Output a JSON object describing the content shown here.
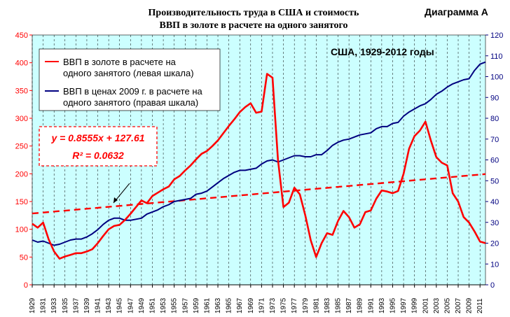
{
  "colors": {
    "plot_bg": "#ccffff",
    "gold_series": "#ff0000",
    "real_series": "#000080",
    "trend": "#ff0000",
    "label_tag": "#0000ff"
  },
  "chart_data": {
    "type": "line",
    "title_line1": "Производительность труда в США и стоимость",
    "title_line2": "ВВП в золоте в расчете на одного занятого",
    "tag": "Диаграмма А",
    "annotation": "США, 1929-2012 годы",
    "left_axis": {
      "min": 0,
      "max": 450,
      "step": 50,
      "ticks": [
        "0",
        "50",
        "100",
        "150",
        "200",
        "250",
        "300",
        "350",
        "400",
        "450"
      ]
    },
    "right_axis": {
      "min": 0,
      "max": 120,
      "step": 10,
      "ticks": [
        "0",
        "10",
        "20",
        "30",
        "40",
        "50",
        "60",
        "70",
        "80",
        "90",
        "100",
        "110",
        "120"
      ]
    },
    "x_range": [
      1929,
      2012
    ],
    "x_ticks": [
      "1929",
      "1931",
      "1933",
      "1935",
      "1937",
      "1939",
      "1941",
      "1943",
      "1945",
      "1947",
      "1949",
      "1951",
      "1953",
      "1955",
      "1957",
      "1959",
      "1961",
      "1963",
      "1965",
      "1967",
      "1969",
      "1971",
      "1973",
      "1975",
      "1977",
      "1979",
      "1981",
      "1983",
      "1985",
      "1987",
      "1989",
      "1991",
      "1993",
      "1995",
      "1997",
      "1999",
      "2001",
      "2003",
      "2005",
      "2007",
      "2009",
      "2011"
    ],
    "grid": "vertical dashed",
    "legend_placement": "top-left",
    "series": [
      {
        "name_line1": "ВВП в золоте в расчете на",
        "name_line2": "одного занятого (левая шкала)",
        "axis": "left",
        "x": [
          1929,
          1930,
          1931,
          1932,
          1933,
          1934,
          1935,
          1936,
          1937,
          1938,
          1939,
          1940,
          1941,
          1942,
          1943,
          1944,
          1945,
          1946,
          1947,
          1948,
          1949,
          1950,
          1951,
          1952,
          1953,
          1954,
          1955,
          1956,
          1957,
          1958,
          1959,
          1960,
          1961,
          1962,
          1963,
          1964,
          1965,
          1966,
          1967,
          1968,
          1969,
          1970,
          1971,
          1972,
          1973,
          1974,
          1975,
          1976,
          1977,
          1978,
          1979,
          1980,
          1981,
          1982,
          1983,
          1984,
          1985,
          1986,
          1987,
          1988,
          1989,
          1990,
          1991,
          1992,
          1993,
          1994,
          1995,
          1996,
          1997,
          1998,
          1999,
          2000,
          2001,
          2002,
          2003,
          2004,
          2005,
          2006,
          2007,
          2008,
          2009,
          2010,
          2011,
          2012
        ],
        "y": [
          110,
          103,
          112,
          82,
          60,
          47,
          51,
          54,
          57,
          57,
          60,
          64,
          75,
          88,
          100,
          106,
          108,
          117,
          128,
          140,
          152,
          147,
          160,
          166,
          172,
          177,
          190,
          196,
          206,
          215,
          226,
          236,
          241,
          250,
          260,
          273,
          286,
          298,
          311,
          320,
          327,
          310,
          312,
          380,
          373,
          225,
          140,
          148,
          175,
          163,
          125,
          80,
          50,
          75,
          93,
          90,
          115,
          133,
          122,
          103,
          109,
          131,
          134,
          155,
          170,
          168,
          165,
          169,
          200,
          245,
          268,
          278,
          294,
          260,
          230,
          220,
          215,
          165,
          150,
          122,
          112,
          96,
          78,
          75
        ]
      },
      {
        "name_line1": "ВВП в ценах 2009 г. в расчете на",
        "name_line2": "одного занятого (правая шкала)",
        "axis": "right",
        "x": [
          1929,
          1930,
          1931,
          1932,
          1933,
          1934,
          1935,
          1936,
          1937,
          1938,
          1939,
          1940,
          1941,
          1942,
          1943,
          1944,
          1945,
          1946,
          1947,
          1948,
          1949,
          1950,
          1951,
          1952,
          1953,
          1954,
          1955,
          1956,
          1957,
          1958,
          1959,
          1960,
          1961,
          1962,
          1963,
          1964,
          1965,
          1966,
          1967,
          1968,
          1969,
          1970,
          1971,
          1972,
          1973,
          1974,
          1975,
          1976,
          1977,
          1978,
          1979,
          1980,
          1981,
          1982,
          1983,
          1984,
          1985,
          1986,
          1987,
          1988,
          1989,
          1990,
          1991,
          1992,
          1993,
          1994,
          1995,
          1996,
          1997,
          1998,
          1999,
          2000,
          2001,
          2002,
          2003,
          2004,
          2005,
          2006,
          2007,
          2008,
          2009,
          2010,
          2011,
          2012
        ],
        "y": [
          21.5,
          20.5,
          21,
          20,
          19,
          19.5,
          20.5,
          21.5,
          22,
          22,
          23,
          24.5,
          26.5,
          29,
          31,
          32,
          32,
          31,
          31,
          31.5,
          32,
          34,
          35,
          36,
          37.5,
          38.5,
          40,
          40.5,
          41,
          41.5,
          43.5,
          44,
          45,
          47,
          49,
          51,
          52.5,
          54,
          55,
          55,
          55.5,
          56,
          58,
          59.5,
          60,
          59,
          60,
          61,
          62,
          62,
          61.5,
          61.5,
          62.5,
          62.5,
          64.5,
          67,
          68.5,
          69.5,
          70,
          71,
          72,
          72.5,
          73,
          75,
          76,
          76,
          77.5,
          78,
          81,
          83,
          84.5,
          86,
          87,
          89,
          91.5,
          93,
          95,
          96.5,
          97.5,
          98.5,
          99,
          103,
          106,
          107
        ]
      }
    ],
    "trendline": {
      "slope": 0.8555,
      "intercept": 127.61,
      "equation": "y = 0.8555x + 127.61",
      "r2": "R² = 0.0632"
    }
  }
}
